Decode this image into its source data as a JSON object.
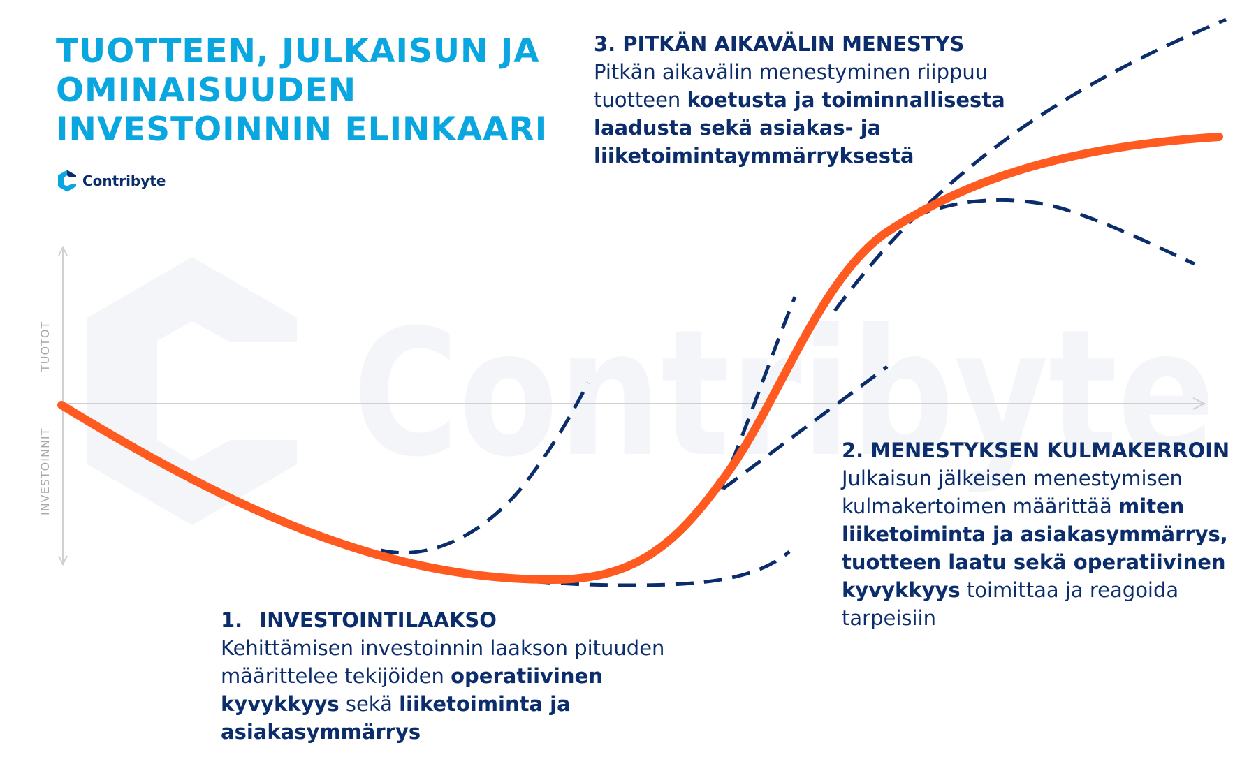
{
  "title": {
    "line1": "TUOTTEEN, JULKAISUN JA",
    "line2": "OMINAISUUDEN",
    "line3": "INVESTOINNIN ELINKAARI"
  },
  "logo": {
    "text": "Contribyte"
  },
  "watermark": {
    "text": "Contribyte"
  },
  "axis": {
    "y_top": "TUOTOT",
    "y_bottom": "INVESTOINNIT"
  },
  "sections": {
    "valley": {
      "number": "1.",
      "heading": "INVESTOINTILAAKSO",
      "t1": "Kehittämisen investoinnin laakson pituuden määrittelee tekijöiden ",
      "t2": "operatiivinen kyvykkyys",
      "t3": " sekä ",
      "t4": "liiketoiminta ja asiakasymmärrys"
    },
    "slope": {
      "heading": "2. MENESTYKSEN KULMAKERROIN",
      "t1": "Julkaisun jälkeisen menestymisen kulmakertoimen määrittää ",
      "t2": "miten liiketoiminta ja asiakasymmärrys, tuotteen laatu sekä operatiivinen kyvykkyys",
      "t3": " toimittaa ja reagoida tarpeisiin"
    },
    "longterm": {
      "heading": "3. PITKÄN AIKAVÄLIN MENESTYS",
      "t1": "Pitkän aikavälin menestyminen riippuu tuotteen ",
      "t2": "koetusta ja toiminnallisesta laadusta sekä asiakas- ja liiketoimintaymmärryksestä"
    }
  },
  "colors": {
    "title": "#0aa6e0",
    "text": "#0c2d6b",
    "curve": "#ff5a1f",
    "dashed": "#0c2d6b",
    "axis": "#d0d0d0",
    "axis_label": "#a8a8a8",
    "watermark": "#f3f5f9"
  }
}
